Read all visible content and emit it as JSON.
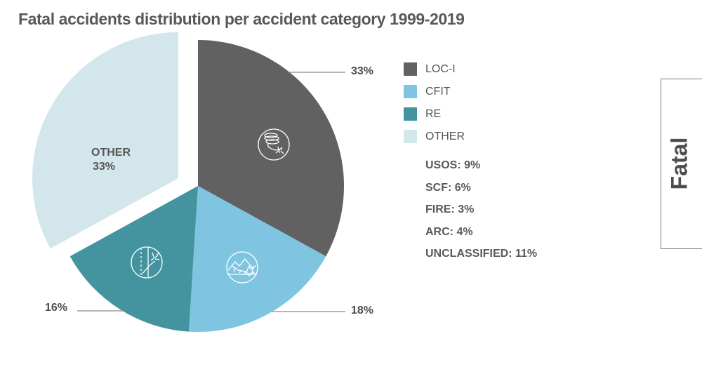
{
  "chart_data": {
    "type": "pie",
    "title": "Fatal accidents distribution per accident category 1999-2019",
    "slices": [
      {
        "key": "loci",
        "label": "LOC-I",
        "value": 33,
        "display": "33%",
        "color": "#616161",
        "icon": "loss-of-control-spiral-plane-icon",
        "exploded": false
      },
      {
        "key": "cfit",
        "label": "CFIT",
        "value": 18,
        "display": "18%",
        "color": "#7fc5e2",
        "icon": "mountain-crash-icon",
        "exploded": false
      },
      {
        "key": "re",
        "label": "RE",
        "value": 16,
        "display": "16%",
        "color": "#43949f",
        "icon": "runway-excursion-icon",
        "exploded": false
      },
      {
        "key": "other",
        "label": "OTHER",
        "value": 33,
        "display": "33%",
        "color": "#d2e6eb",
        "icon": null,
        "exploded": true
      }
    ],
    "start_angle": "12 o'clock",
    "direction": "clockwise",
    "other_breakdown": [
      {
        "label": "USOS",
        "value": 9,
        "display": "USOS: 9%"
      },
      {
        "label": "SCF",
        "value": 6,
        "display": "SCF: 6%"
      },
      {
        "label": "FIRE",
        "value": 3,
        "display": "FIRE: 3%"
      },
      {
        "label": "ARC",
        "value": 4,
        "display": "ARC: 4%"
      },
      {
        "label": "UNCLASSIFIED",
        "value": 11,
        "display": "UNCLASSIFIED: 11%"
      }
    ],
    "legend_position": "right"
  },
  "labels": {
    "loci_pct": "33%",
    "cfit_pct": "18%",
    "re_pct": "16%",
    "other_name": "OTHER",
    "other_pct": "33%"
  },
  "legend": [
    {
      "label": "LOC-I",
      "color": "#616161"
    },
    {
      "label": "CFIT",
      "color": "#7fc5e2"
    },
    {
      "label": "RE",
      "color": "#43949f"
    },
    {
      "label": "OTHER",
      "color": "#d2e6eb"
    }
  ],
  "side_panel": {
    "label": "Fatal"
  }
}
